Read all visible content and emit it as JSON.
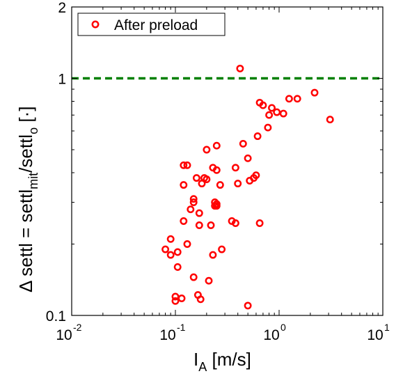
{
  "chart_data": {
    "type": "scatter",
    "xscale": "log",
    "yscale": "log",
    "xlim": [
      0.01,
      10
    ],
    "ylim": [
      0.1,
      2
    ],
    "xlabel": {
      "main": "I",
      "sub": "A",
      "rest": " [m/s]"
    },
    "ylabel": {
      "prefix": "Δ settl = settl",
      "sub1": "mit",
      "mid": "/settl",
      "sub2": "o",
      "suffix": " [·]"
    },
    "x_ticks": [
      {
        "base": "10",
        "exp": "-2",
        "value": 0.01
      },
      {
        "base": "10",
        "exp": "-1",
        "value": 0.1
      },
      {
        "base": "10",
        "exp": "0",
        "value": 1
      },
      {
        "base": "10",
        "exp": "1",
        "value": 10
      }
    ],
    "y_ticks": [
      {
        "label": "0.1",
        "value": 0.1
      },
      {
        "label": "1",
        "value": 1
      },
      {
        "label": "2",
        "value": 2
      }
    ],
    "reference_line": {
      "y": 1,
      "color": "#008000",
      "style": "dashed"
    },
    "marker_color": "#ff0000",
    "legend": {
      "position": "top-left",
      "entries": [
        "After preload"
      ]
    },
    "series": [
      {
        "name": "After preload",
        "points": [
          [
            0.42,
            1.1
          ],
          [
            0.65,
            0.79
          ],
          [
            0.7,
            0.77
          ],
          [
            0.85,
            0.75
          ],
          [
            0.95,
            0.72
          ],
          [
            1.1,
            0.71
          ],
          [
            1.25,
            0.82
          ],
          [
            1.5,
            0.82
          ],
          [
            2.2,
            0.87
          ],
          [
            3.1,
            0.67
          ],
          [
            0.8,
            0.7
          ],
          [
            0.78,
            0.62
          ],
          [
            0.62,
            0.57
          ],
          [
            0.45,
            0.53
          ],
          [
            0.5,
            0.46
          ],
          [
            0.38,
            0.42
          ],
          [
            0.6,
            0.39
          ],
          [
            0.57,
            0.38
          ],
          [
            0.52,
            0.37
          ],
          [
            0.4,
            0.36
          ],
          [
            0.35,
            0.25
          ],
          [
            0.38,
            0.245
          ],
          [
            0.65,
            0.245
          ],
          [
            0.25,
            0.52
          ],
          [
            0.2,
            0.5
          ],
          [
            0.12,
            0.43
          ],
          [
            0.13,
            0.43
          ],
          [
            0.23,
            0.42
          ],
          [
            0.25,
            0.41
          ],
          [
            0.16,
            0.38
          ],
          [
            0.19,
            0.38
          ],
          [
            0.2,
            0.375
          ],
          [
            0.18,
            0.36
          ],
          [
            0.12,
            0.355
          ],
          [
            0.27,
            0.355
          ],
          [
            0.15,
            0.31
          ],
          [
            0.15,
            0.3
          ],
          [
            0.24,
            0.3
          ],
          [
            0.25,
            0.295
          ],
          [
            0.24,
            0.29
          ],
          [
            0.25,
            0.29
          ],
          [
            0.14,
            0.28
          ],
          [
            0.17,
            0.27
          ],
          [
            0.12,
            0.25
          ],
          [
            0.17,
            0.24
          ],
          [
            0.22,
            0.24
          ],
          [
            0.09,
            0.21
          ],
          [
            0.13,
            0.2
          ],
          [
            0.08,
            0.19
          ],
          [
            0.105,
            0.185
          ],
          [
            0.09,
            0.18
          ],
          [
            0.23,
            0.18
          ],
          [
            0.28,
            0.19
          ],
          [
            0.105,
            0.16
          ],
          [
            0.15,
            0.145
          ],
          [
            0.21,
            0.14
          ],
          [
            0.1,
            0.12
          ],
          [
            0.115,
            0.118
          ],
          [
            0.165,
            0.122
          ],
          [
            0.175,
            0.117
          ],
          [
            0.1,
            0.115
          ],
          [
            0.5,
            0.11
          ]
        ]
      }
    ]
  }
}
